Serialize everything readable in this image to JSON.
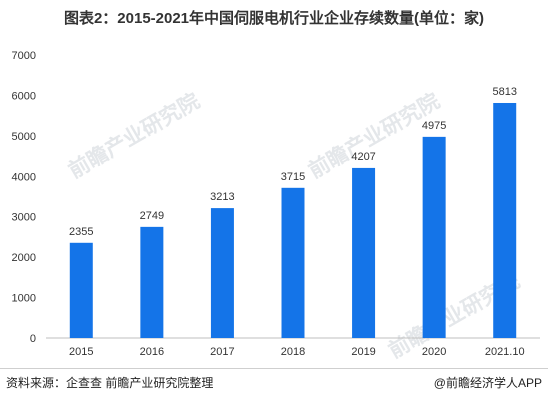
{
  "title": "图表2：2015-2021年中国伺服电机行业企业存续数量(单位：家)",
  "watermark": "前瞻产业研究院",
  "footer": {
    "source": "资料来源：企查查 前瞻产业研究院整理",
    "credit": "@前瞻经济学人APP"
  },
  "colors": {
    "bar": "#1474e8",
    "axis": "#bfbfbf",
    "text": "#333333"
  },
  "chart_data": {
    "type": "bar",
    "categories": [
      "2015",
      "2016",
      "2017",
      "2018",
      "2019",
      "2020",
      "2021.10"
    ],
    "values": [
      2355,
      2749,
      3213,
      3715,
      4207,
      4975,
      5813
    ],
    "title": "图表2：2015-2021年中国伺服电机行业企业存续数量(单位：家)",
    "xlabel": "",
    "ylabel": "",
    "ylim": [
      0,
      7000
    ],
    "yticks": [
      0,
      1000,
      2000,
      3000,
      4000,
      5000,
      6000,
      7000
    ],
    "grid": false,
    "legend": "none"
  }
}
